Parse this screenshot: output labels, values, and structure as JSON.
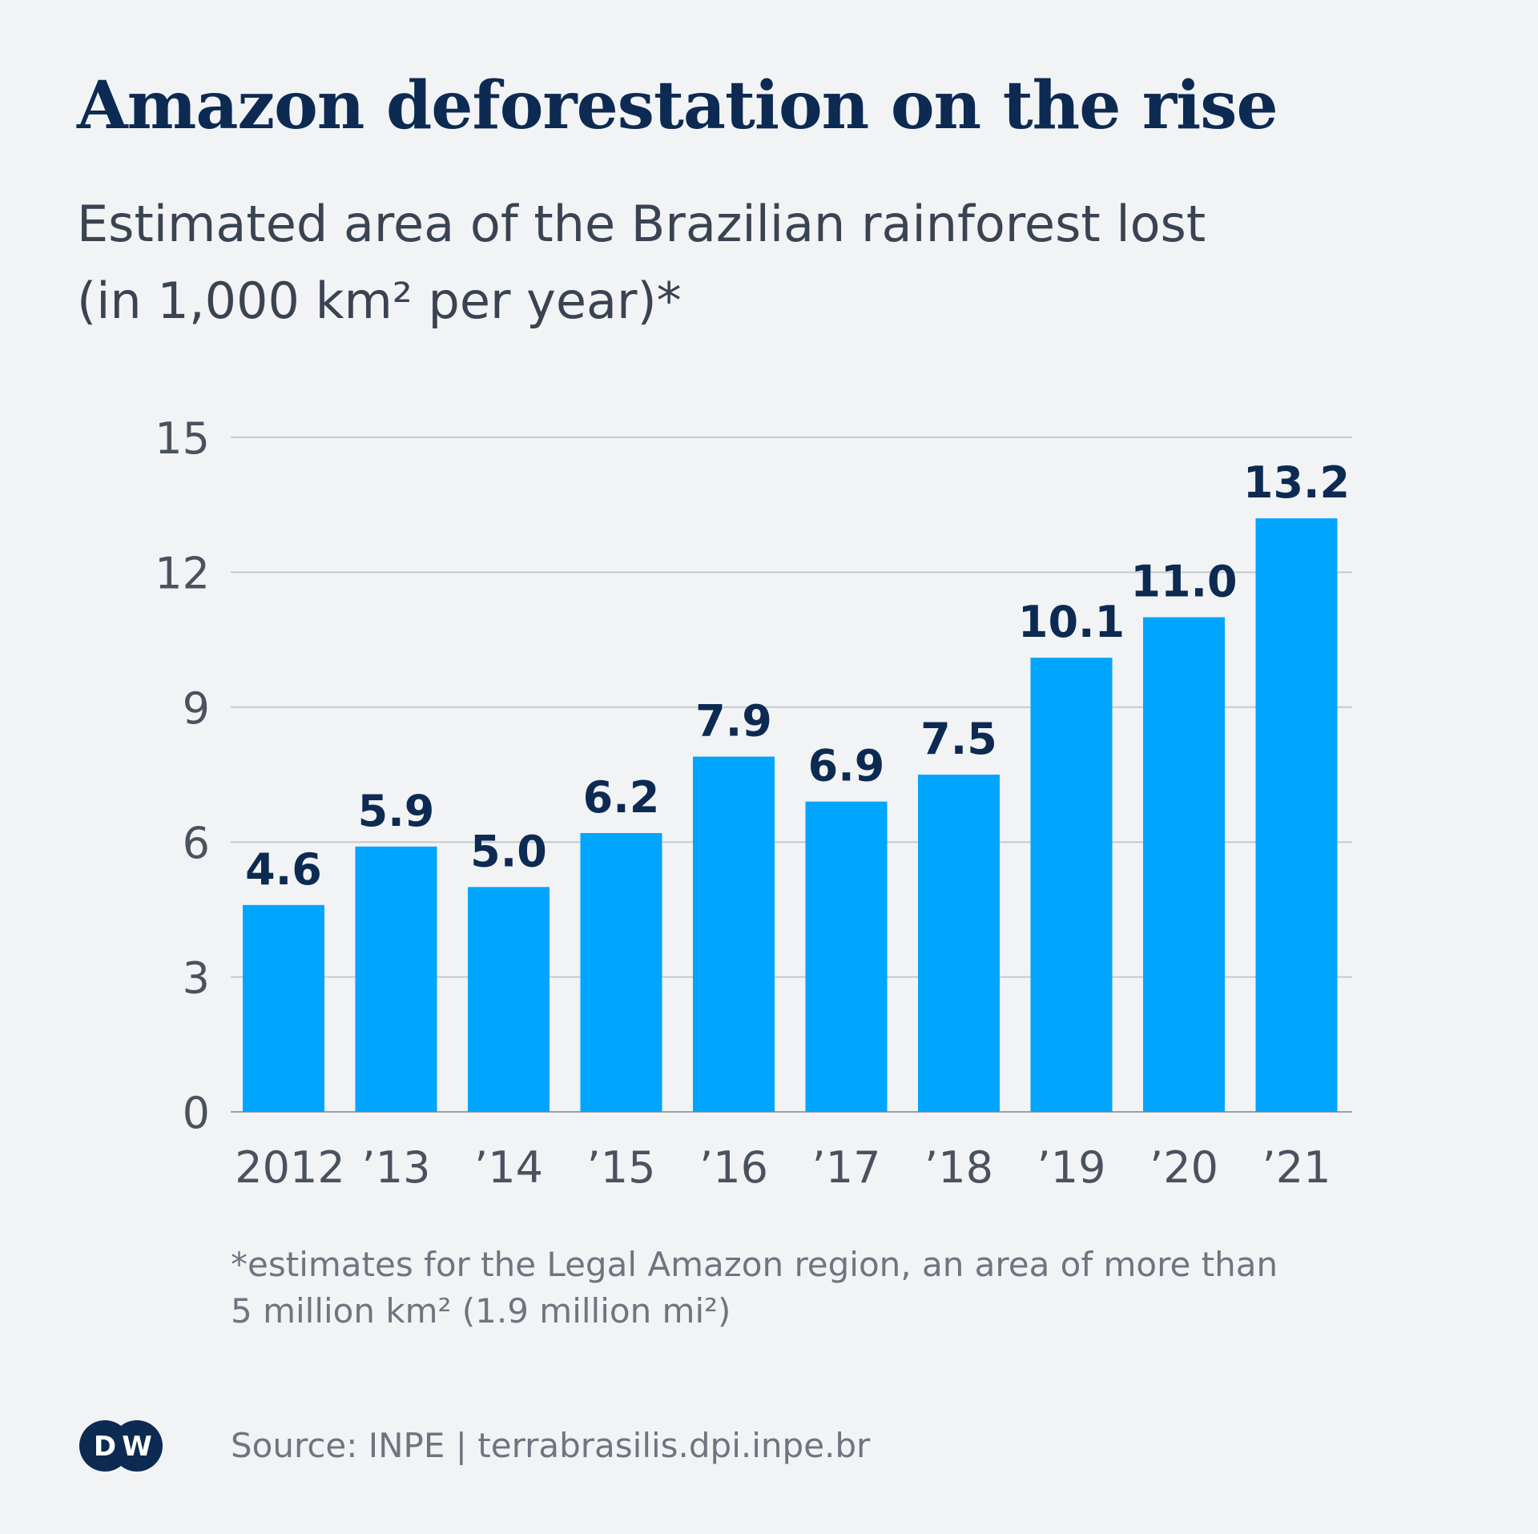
{
  "header": {
    "title": "Amazon deforestation on the rise",
    "subtitle_line1": "Estimated area of the Brazilian rainforest lost",
    "subtitle_line2": "(in 1,000 km² per year)*"
  },
  "chart_data": {
    "type": "bar",
    "title": "Amazon deforestation on the rise",
    "subtitle": "Estimated area of the Brazilian rainforest lost (in 1,000 km² per year)*",
    "xlabel": "",
    "ylabel": "",
    "categories": [
      "2012",
      "’13",
      "’14",
      "’15",
      "’16",
      "’17",
      "’18",
      "’19",
      "’20",
      "’21"
    ],
    "values": [
      4.6,
      5.9,
      5.0,
      6.2,
      7.9,
      6.9,
      7.5,
      10.1,
      11.0,
      13.2
    ],
    "data_labels": [
      "4.6",
      "5.9",
      "5.0",
      "6.2",
      "7.9",
      "6.9",
      "7.5",
      "10.1",
      "11.0",
      "13.2"
    ],
    "ylim": [
      0,
      15
    ],
    "yticks": [
      0,
      3,
      6,
      9,
      12,
      15
    ],
    "grid": "horizontal",
    "legend": "none",
    "bar_color": "#00a5ff",
    "label_color": "#0c2a52"
  },
  "footer": {
    "footnote_line1": "*estimates for the Legal Amazon region, an area of more than",
    "footnote_line2": " 5 million km² (1.9 million mi²)",
    "source": "Source: INPE | terrabrasilis.dpi.inpe.br",
    "logo_text": "DW"
  }
}
